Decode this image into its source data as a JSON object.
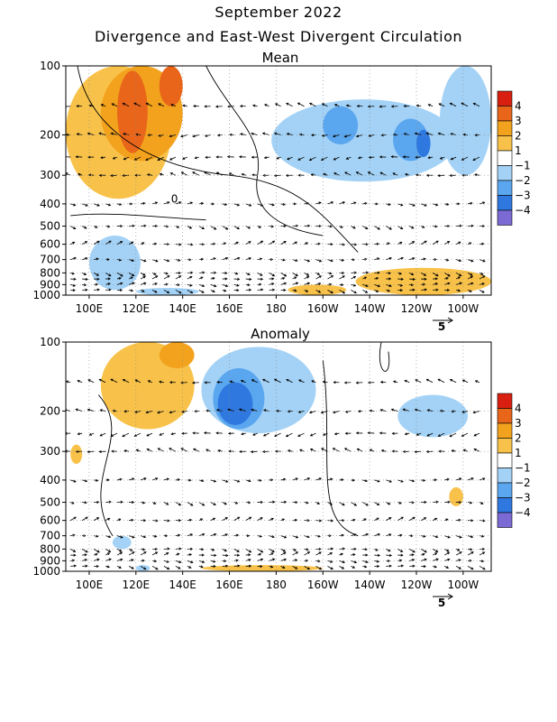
{
  "title": "September 2022",
  "subtitle": "Divergence and East-West Divergent Circulation",
  "colors": {
    "pos4": "#d92010",
    "pos3": "#e8651a",
    "pos2": "#f3a21d",
    "pos1": "#f8c24a",
    "neg1": "#a3d2f6",
    "neg2": "#5aa6ef",
    "neg3": "#2f78e0",
    "neg4": "#7b6ad4",
    "white": "#ffffff"
  },
  "colorbar": {
    "labels": [
      "4",
      "3",
      "2",
      "1",
      "−1",
      "−2",
      "−3",
      "−4"
    ]
  },
  "chart_data": [
    {
      "type": "heatmap",
      "panel_title": "Mean",
      "x_ticks": [
        "100E",
        "120E",
        "140E",
        "160E",
        "180",
        "160W",
        "140W",
        "120W",
        "100W"
      ],
      "x_values": [
        100,
        120,
        140,
        160,
        180,
        200,
        220,
        240,
        260
      ],
      "xlim": [
        90,
        272
      ],
      "y_ticks": [
        "100",
        "200",
        "300",
        "400",
        "500",
        "600",
        "700",
        "800",
        "900",
        "1000"
      ],
      "y_values": [
        100,
        200,
        300,
        400,
        500,
        600,
        700,
        800,
        900,
        1000
      ],
      "ylim": [
        1000,
        100
      ],
      "y_scale": "log",
      "vector_ref_label": "5",
      "contour_label": "0",
      "regions": [
        {
          "lon": [
            90,
            135
          ],
          "p": [
            100,
            380
          ],
          "level": 1
        },
        {
          "lon": [
            105,
            140
          ],
          "p": [
            100,
            260
          ],
          "level": 2
        },
        {
          "lon": [
            112,
            125
          ],
          "p": [
            105,
            240
          ],
          "level": 3
        },
        {
          "lon": [
            130,
            140
          ],
          "p": [
            100,
            150
          ],
          "level": 3
        },
        {
          "lon": [
            178,
            257
          ],
          "p": [
            140,
            320
          ],
          "level": -1
        },
        {
          "lon": [
            200,
            215
          ],
          "p": [
            150,
            220
          ],
          "level": -2
        },
        {
          "lon": [
            230,
            245
          ],
          "p": [
            170,
            260
          ],
          "level": -2
        },
        {
          "lon": [
            240,
            246
          ],
          "p": [
            190,
            250
          ],
          "level": -3
        },
        {
          "lon": [
            250,
            272
          ],
          "p": [
            100,
            300
          ],
          "level": -1
        },
        {
          "lon": [
            100,
            122
          ],
          "p": [
            550,
            950
          ],
          "level": -1
        },
        {
          "lon": [
            214,
            272
          ],
          "p": [
            760,
            1000
          ],
          "level": 1
        },
        {
          "lon": [
            185,
            210
          ],
          "p": [
            900,
            1000
          ],
          "level": 1
        },
        {
          "lon": [
            120,
            147
          ],
          "p": [
            930,
            1000
          ],
          "level": -1
        }
      ]
    },
    {
      "type": "heatmap",
      "panel_title": "Anomaly",
      "x_ticks": [
        "100E",
        "120E",
        "140E",
        "160E",
        "180",
        "160W",
        "140W",
        "120W",
        "100W"
      ],
      "x_values": [
        100,
        120,
        140,
        160,
        180,
        200,
        220,
        240,
        260
      ],
      "xlim": [
        90,
        272
      ],
      "y_ticks": [
        "100",
        "200",
        "300",
        "400",
        "500",
        "600",
        "700",
        "800",
        "900",
        "1000"
      ],
      "y_values": [
        100,
        200,
        300,
        400,
        500,
        600,
        700,
        800,
        900,
        1000
      ],
      "ylim": [
        1000,
        100
      ],
      "y_scale": "log",
      "vector_ref_label": "5",
      "regions": [
        {
          "lon": [
            105,
            145
          ],
          "p": [
            100,
            240
          ],
          "level": 1
        },
        {
          "lon": [
            130,
            145
          ],
          "p": [
            100,
            130
          ],
          "level": 2
        },
        {
          "lon": [
            148,
            197
          ],
          "p": [
            105,
            250
          ],
          "level": -1
        },
        {
          "lon": [
            153,
            175
          ],
          "p": [
            130,
            240
          ],
          "level": -2
        },
        {
          "lon": [
            155,
            170
          ],
          "p": [
            150,
            230
          ],
          "level": -3
        },
        {
          "lon": [
            232,
            262
          ],
          "p": [
            170,
            260
          ],
          "level": -1
        },
        {
          "lon": [
            92,
            97
          ],
          "p": [
            280,
            340
          ],
          "level": 1
        },
        {
          "lon": [
            254,
            260
          ],
          "p": [
            430,
            520
          ],
          "level": 1
        },
        {
          "lon": [
            148,
            200
          ],
          "p": [
            940,
            1000
          ],
          "level": 1
        },
        {
          "lon": [
            110,
            118
          ],
          "p": [
            700,
            800
          ],
          "level": -1
        },
        {
          "lon": [
            120,
            126
          ],
          "p": [
            940,
            1000
          ],
          "level": -1
        }
      ]
    }
  ]
}
